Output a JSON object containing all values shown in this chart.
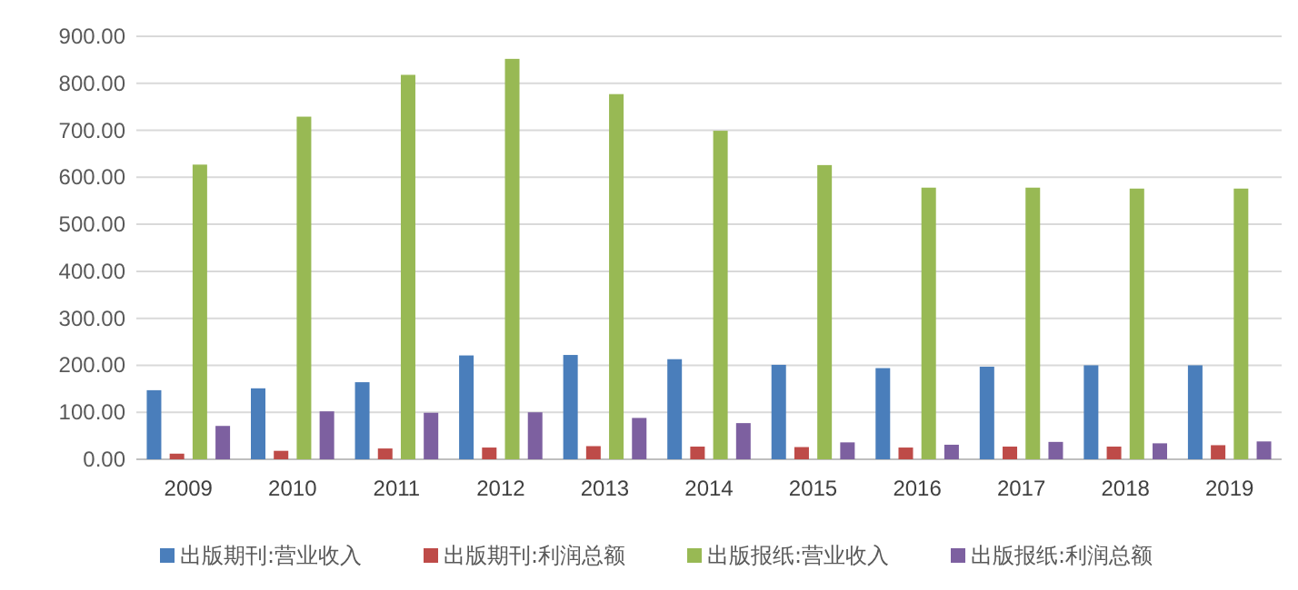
{
  "chart_data": {
    "type": "bar",
    "categories": [
      "2009",
      "2010",
      "2011",
      "2012",
      "2013",
      "2014",
      "2015",
      "2016",
      "2017",
      "2018",
      "2019"
    ],
    "series": [
      {
        "name": "出版期刊:营业收入",
        "color": "#4a7ebb",
        "values": [
          147,
          151,
          164,
          221,
          222,
          213,
          201,
          194,
          197,
          200,
          200
        ]
      },
      {
        "name": "出版期刊:利润总额",
        "color": "#be4b48",
        "values": [
          12,
          18,
          23,
          25,
          28,
          27,
          26,
          25,
          27,
          27,
          30
        ]
      },
      {
        "name": "出版报纸:营业收入",
        "color": "#98b954",
        "values": [
          627,
          729,
          818,
          852,
          777,
          699,
          626,
          578,
          578,
          576,
          576
        ]
      },
      {
        "name": "出版报纸:利润总额",
        "color": "#7d60a0",
        "values": [
          71,
          102,
          99,
          100,
          88,
          77,
          36,
          31,
          37,
          34,
          38
        ]
      }
    ],
    "ylim": [
      0,
      900
    ],
    "yticks": [
      {
        "value": 0,
        "label": "0.00"
      },
      {
        "value": 100,
        "label": "100.00"
      },
      {
        "value": 200,
        "label": "200.00"
      },
      {
        "value": 300,
        "label": "300.00"
      },
      {
        "value": 400,
        "label": "400.00"
      },
      {
        "value": 500,
        "label": "500.00"
      },
      {
        "value": 600,
        "label": "600.00"
      },
      {
        "value": 700,
        "label": "700.00"
      },
      {
        "value": 800,
        "label": "800.00"
      },
      {
        "value": 900,
        "label": "900.00"
      }
    ],
    "grid": "y",
    "legend": "bottom"
  }
}
